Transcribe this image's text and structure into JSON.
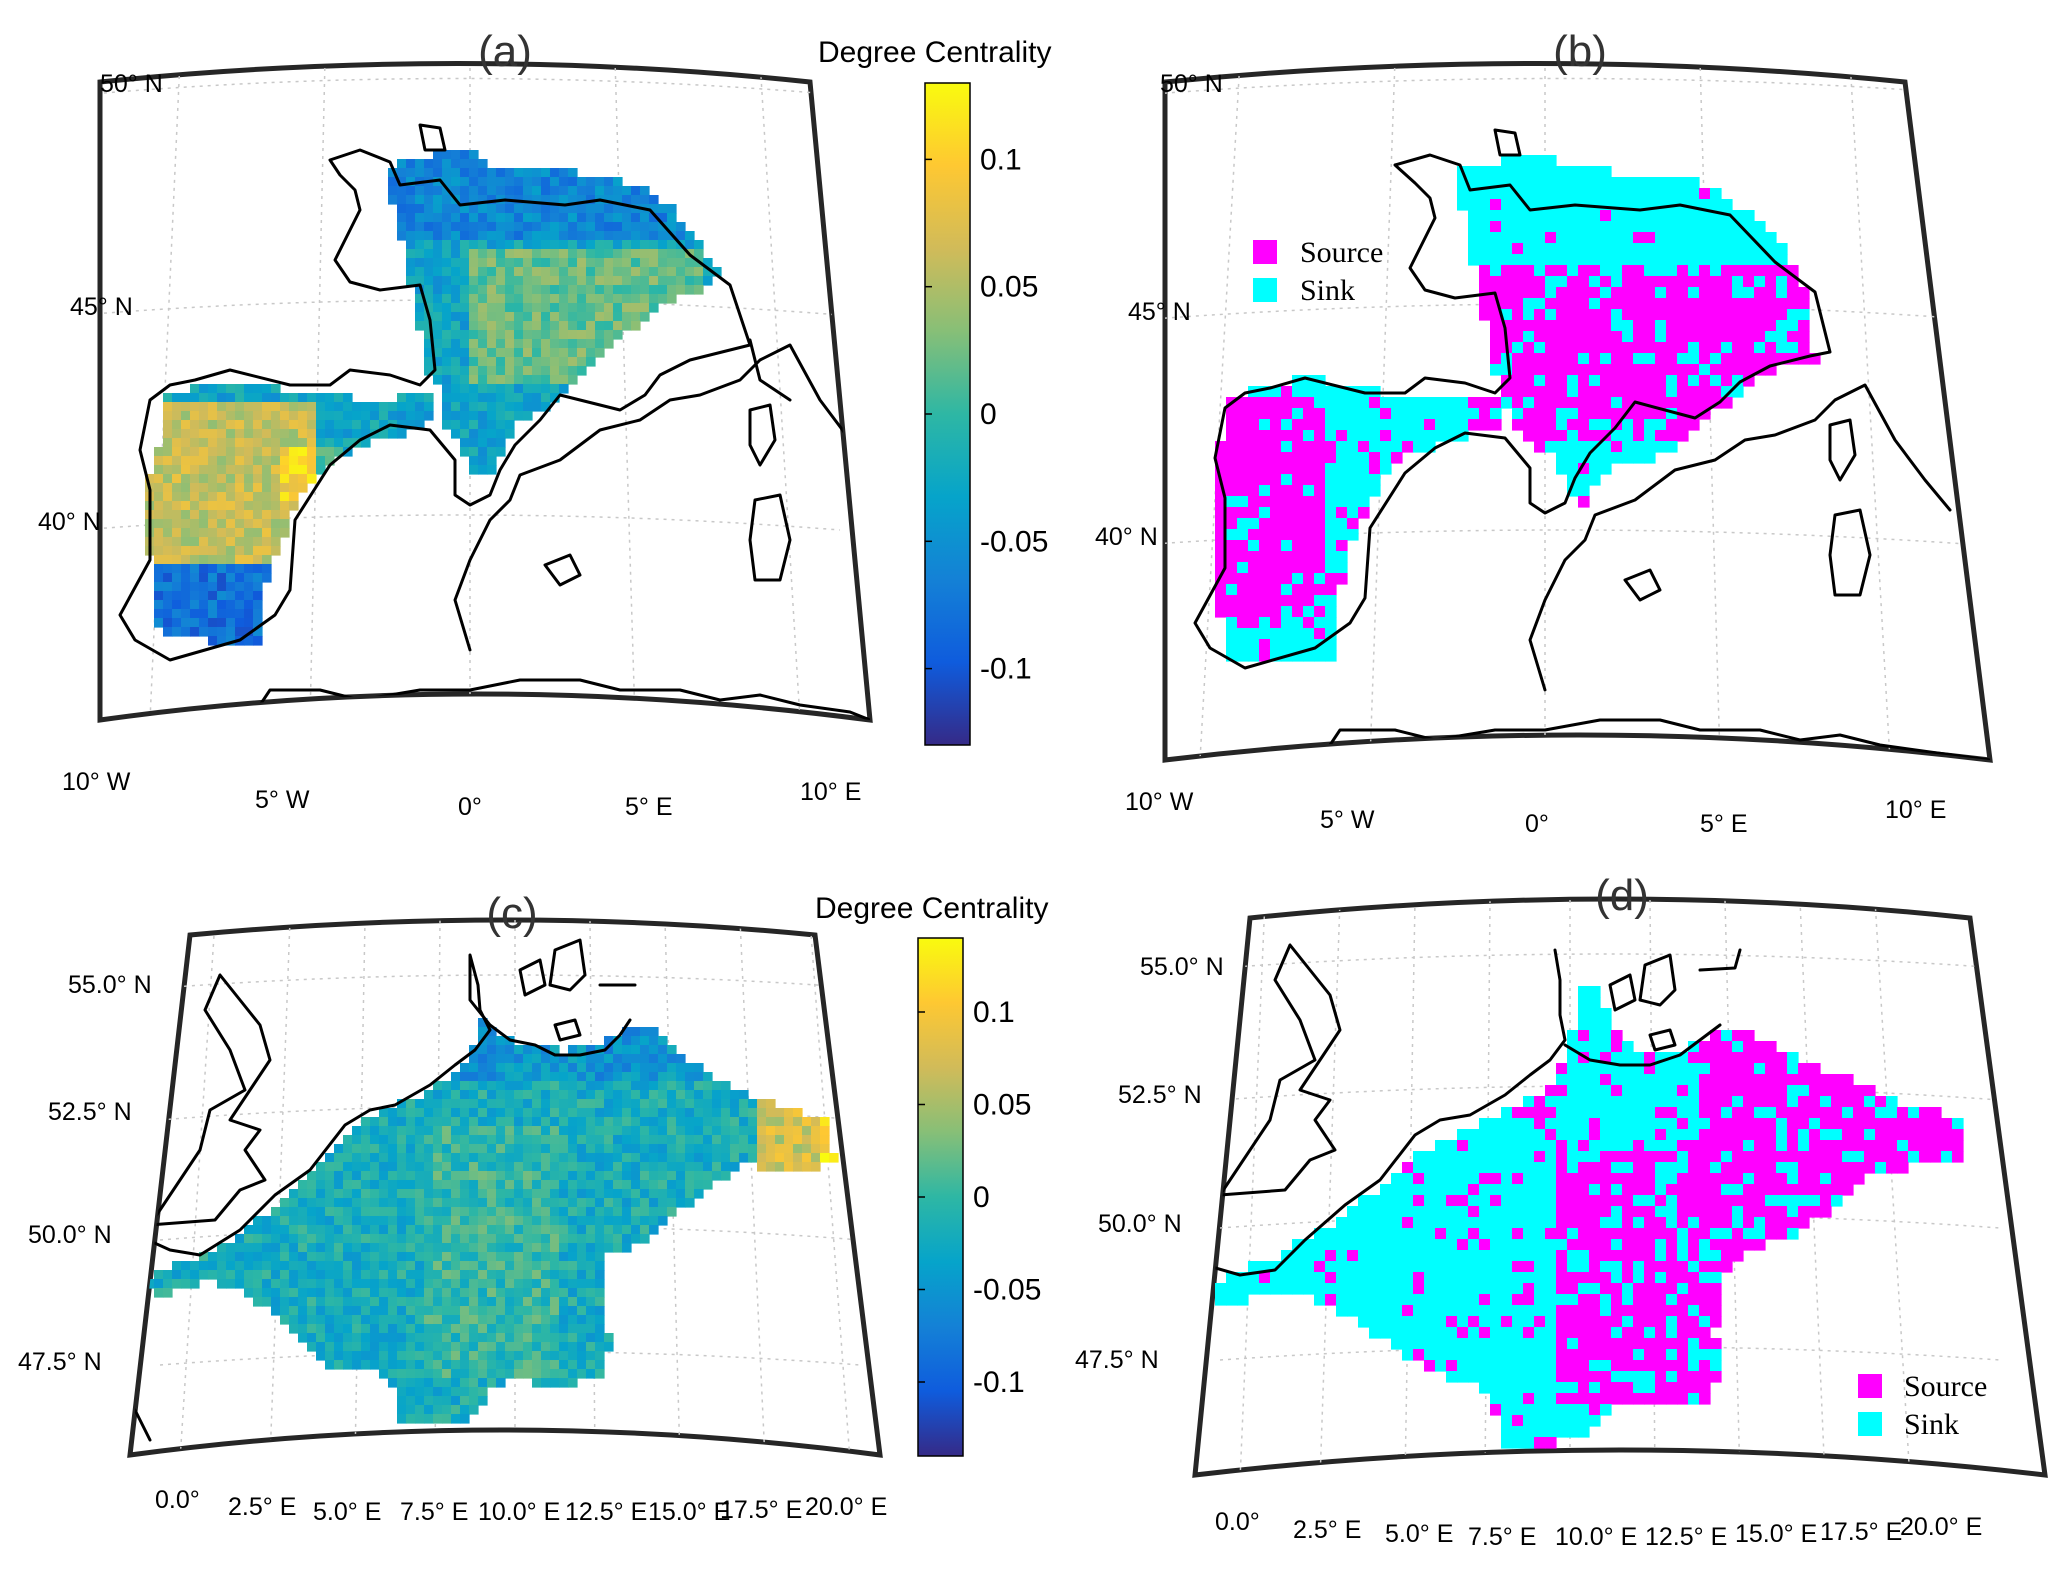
{
  "panels": [
    {
      "label": "(a)",
      "kind": "continuous",
      "colorbar": {
        "title": "Degree Centrality",
        "ticks": [
          "0.1",
          "0.05",
          "0",
          "-0.05",
          "-0.1"
        ],
        "tick_values": [
          0.1,
          0.05,
          0,
          -0.05,
          -0.1
        ],
        "range": [
          -0.13,
          0.13
        ]
      },
      "lat_labels": [
        "50° N",
        "45° N",
        "40° N"
      ],
      "lon_labels": [
        "10° W",
        "5° W",
        "0°",
        "5° E",
        "10° E"
      ]
    },
    {
      "label": "(b)",
      "kind": "categorical",
      "legend": [
        {
          "name": "Source",
          "color": "#ff00ff"
        },
        {
          "name": "Sink",
          "color": "#00ffff"
        }
      ],
      "lat_labels": [
        "50° N",
        "45° N",
        "40° N"
      ],
      "lon_labels": [
        "10° W",
        "5° W",
        "0°",
        "5° E",
        "10° E"
      ]
    },
    {
      "label": "(c)",
      "kind": "continuous",
      "colorbar": {
        "title": "Degree Centrality",
        "ticks": [
          "0.1",
          "0.05",
          "0",
          "-0.05",
          "-0.1"
        ],
        "tick_values": [
          0.1,
          0.05,
          0,
          -0.05,
          -0.1
        ],
        "range": [
          -0.14,
          0.14
        ]
      },
      "lat_labels": [
        "55.0° N",
        "52.5° N",
        "50.0° N",
        "47.5° N"
      ],
      "lon_labels": [
        "0.0°",
        "2.5° E",
        "5.0° E",
        "7.5° E",
        "10.0° E",
        "12.5° E",
        "15.0° E",
        "17.5° E",
        "20.0° E"
      ]
    },
    {
      "label": "(d)",
      "kind": "categorical",
      "legend": [
        {
          "name": "Source",
          "color": "#ff00ff"
        },
        {
          "name": "Sink",
          "color": "#00ffff"
        }
      ],
      "lat_labels": [
        "55.0° N",
        "52.5° N",
        "50.0° N",
        "47.5° N"
      ],
      "lon_labels": [
        "0.0°",
        "2.5° E",
        "5.0° E",
        "7.5° E",
        "10.0° E",
        "12.5° E",
        "15.0° E",
        "17.5° E",
        "20.0° E"
      ]
    }
  ],
  "colormap": "parula",
  "colors": {
    "source": "#ff00ff",
    "sink": "#00ffff",
    "coastline": "#000000"
  }
}
